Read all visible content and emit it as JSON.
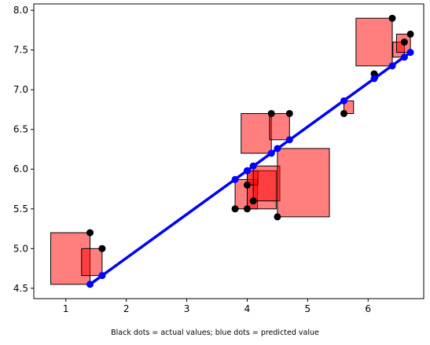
{
  "chart_data": {
    "type": "scatter",
    "title": "",
    "xlabel": "",
    "ylabel": "",
    "xlim": [
      0.47,
      6.92
    ],
    "ylim": [
      4.37,
      8.08
    ],
    "xticks": [
      1,
      2,
      3,
      4,
      5,
      6
    ],
    "yticks": [
      4.5,
      5.0,
      5.5,
      6.0,
      6.5,
      7.0,
      7.5,
      8.0
    ],
    "x": [
      1.4,
      1.6,
      3.8,
      4.0,
      4.0,
      4.1,
      4.4,
      4.5,
      4.7,
      5.6,
      6.1,
      6.4,
      6.6,
      6.7
    ],
    "actual": [
      5.2,
      5.0,
      5.5,
      5.5,
      5.8,
      5.6,
      6.7,
      5.4,
      6.7,
      6.7,
      7.2,
      7.9,
      7.6,
      7.7
    ],
    "predicted": [
      4.55,
      4.66,
      5.87,
      5.98,
      5.98,
      6.04,
      6.2,
      6.26,
      6.37,
      6.86,
      7.14,
      7.3,
      7.41,
      7.47
    ],
    "residual_squares": [
      {
        "x0": 0.75,
        "y0": 4.55,
        "x1": 1.4,
        "y1": 5.2
      },
      {
        "x0": 1.26,
        "y0": 4.66,
        "x1": 1.6,
        "y1": 5.0
      },
      {
        "x0": 3.8,
        "y0": 5.5,
        "x1": 4.17,
        "y1": 5.87
      },
      {
        "x0": 4.0,
        "y0": 5.5,
        "x1": 4.48,
        "y1": 5.98
      },
      {
        "x0": 4.0,
        "y0": 5.8,
        "x1": 4.18,
        "y1": 5.98
      },
      {
        "x0": 4.1,
        "y0": 5.6,
        "x1": 4.54,
        "y1": 6.04
      },
      {
        "x0": 3.9,
        "y0": 6.2,
        "x1": 4.4,
        "y1": 6.7
      },
      {
        "x0": 4.5,
        "y0": 5.4,
        "x1": 5.36,
        "y1": 6.26
      },
      {
        "x0": 4.37,
        "y0": 6.37,
        "x1": 4.7,
        "y1": 6.7
      },
      {
        "x0": 5.6,
        "y0": 6.7,
        "x1": 5.76,
        "y1": 6.86
      },
      {
        "x0": 6.1,
        "y0": 7.14,
        "x1": 6.16,
        "y1": 7.2
      },
      {
        "x0": 5.8,
        "y0": 7.3,
        "x1": 6.4,
        "y1": 7.9
      },
      {
        "x0": 6.41,
        "y0": 7.41,
        "x1": 6.6,
        "y1": 7.6
      },
      {
        "x0": 6.47,
        "y0": 7.47,
        "x1": 6.7,
        "y1": 7.7
      }
    ],
    "grid": false,
    "legend": "none",
    "colors": {
      "actual_dot": "#000000",
      "predicted_dot": "#0000ff",
      "regression_line": "#0000ff",
      "square_fill": "#ff0000",
      "square_edge": "#000000"
    }
  },
  "caption": "Black dots = actual values; blue dots = predicted value"
}
